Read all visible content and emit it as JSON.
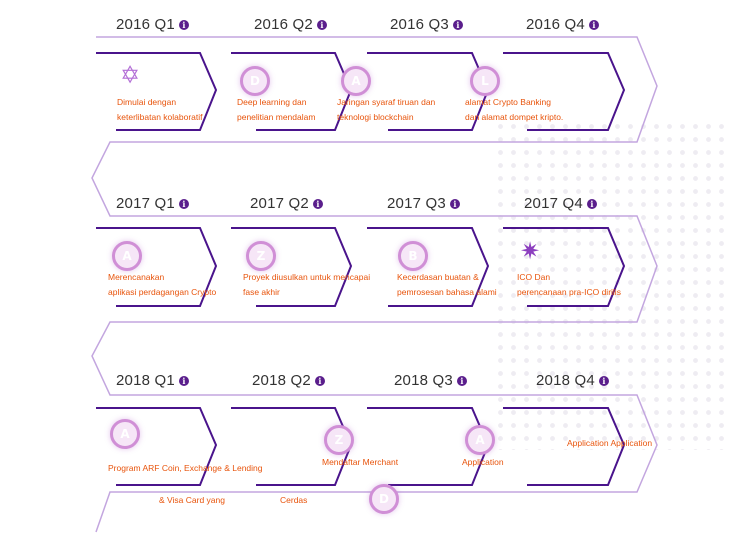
{
  "rows": [
    {
      "quarters": [
        {
          "label": "2016 Q1",
          "lines": [
            "Dimulai dengan",
            "keterlibatan kolaboratif"
          ],
          "icon": "hexagram-icon"
        },
        {
          "label": "2016 Q2",
          "lines": [
            "Deep learning dan",
            "penelitian mendalam"
          ],
          "icon": "coin-icon"
        },
        {
          "label": "2016 Q3",
          "lines": [
            "Jaringan syaraf tiruan dan",
            "teknologi blockchain"
          ],
          "icon": "coin-icon"
        },
        {
          "label": "2016 Q4",
          "lines": [
            "alamat Crypto Banking",
            "dan alamat dompet kripto."
          ],
          "icon": "coin-icon"
        }
      ]
    },
    {
      "quarters": [
        {
          "label": "2017 Q1",
          "lines": [
            "Merencanakan",
            "aplikasi perdagangan Crypto"
          ],
          "icon": "coin-icon"
        },
        {
          "label": "2017 Q2",
          "lines": [
            "Proyek diusulkan untuk mencapai",
            "fase akhir"
          ],
          "icon": "coin-icon"
        },
        {
          "label": "2017 Q3",
          "lines": [
            "Kecerdasan buatan &",
            "pemrosesan bahasa alami"
          ],
          "icon": "coin-icon"
        },
        {
          "label": "2017 Q4",
          "lines": [
            "ICO Dan",
            "perencanaan pra-ICO dirilis"
          ],
          "icon": "starburst-icon"
        }
      ]
    },
    {
      "quarters": [
        {
          "label": "2018 Q1",
          "lines": [
            "Program ARF Coin, Exchange & Lending"
          ],
          "icon": "coin-icon"
        },
        {
          "label": "2018 Q2",
          "lines": [
            "Mendaftar Merchant"
          ],
          "icon": "coin-icon"
        },
        {
          "label": "2018 Q3",
          "lines": [
            "Application"
          ],
          "icon": "coin-icon"
        },
        {
          "label": "2018 Q4",
          "lines": [
            "Application Application"
          ],
          "icon": "none"
        }
      ]
    }
  ],
  "extra": {
    "visa_text": "& Visa Card yang",
    "cerdas_text": "Cerdas"
  },
  "colors": {
    "arrow_dark": "#4a148c",
    "track_light": "#c3a6df",
    "text_orange": "#e8540c",
    "info_icon": "#5a1e8c",
    "coin_border": "#d08fd6"
  }
}
